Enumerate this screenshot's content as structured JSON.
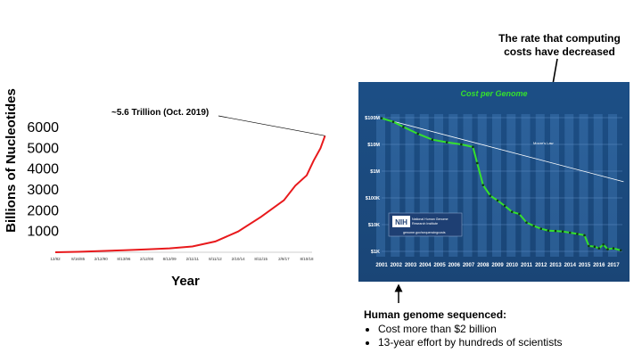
{
  "chart_data": [
    {
      "type": "line",
      "title": "",
      "ylabel": "Billions of Nucleotides",
      "xlabel": "Year",
      "ylim": [
        0,
        6000
      ],
      "yticks": [
        1000,
        2000,
        3000,
        4000,
        5000,
        6000
      ],
      "xtick_labels": [
        "12/82",
        "8/16/85",
        "2/12/90",
        "8/13/96",
        "2/12/08",
        "8/12/09",
        "2/11/11",
        "8/11/12",
        "2/10/14",
        "8/11/15",
        "2/9/17",
        "8/10/18"
      ],
      "annotation": "~5.6 Trillion (Oct. 2019)",
      "line_color": "#e8191c",
      "series": [
        {
          "x_index": [
            0,
            1,
            2,
            3,
            4,
            5,
            6,
            7,
            8,
            9,
            10,
            10.5,
            11,
            11.3,
            11.6,
            11.8
          ],
          "values": [
            0,
            20,
            60,
            100,
            140,
            190,
            280,
            520,
            1000,
            1700,
            2500,
            3200,
            3700,
            4400,
            5000,
            5600
          ]
        }
      ]
    },
    {
      "type": "line",
      "title": "Cost per Genome",
      "y_scale": "log",
      "ylim": [
        1000,
        100000000
      ],
      "ytick_labels": [
        "$100M",
        "$10M",
        "$1M",
        "$100K",
        "$10K",
        "$1K"
      ],
      "x_categories": [
        "2001",
        "2002",
        "2003",
        "2004",
        "2005",
        "2006",
        "2007",
        "2008",
        "2009",
        "2010",
        "2011",
        "2012",
        "2013",
        "2014",
        "2015",
        "2016",
        "2017"
      ],
      "series": [
        {
          "name": "Moore's Law",
          "color": "#ffffff",
          "x": [
            2001,
            2017.7
          ],
          "values": [
            95000000,
            400000
          ]
        },
        {
          "color": "#35e02d",
          "x": [
            2001,
            2001.8,
            2002.5,
            2003.5,
            2004.5,
            2005.5,
            2006.5,
            2007.3,
            2007.6,
            2008.0,
            2008.5,
            2009.0,
            2009.5,
            2010.0,
            2010.5,
            2011.0,
            2011.5,
            2012.0,
            2012.5,
            2013.0,
            2013.5,
            2014.0,
            2014.5,
            2015.0,
            2015.3,
            2015.7,
            2016.0,
            2016.3,
            2016.6,
            2017.0,
            2017.5
          ],
          "values": [
            95000000,
            70000000,
            45000000,
            25000000,
            15000000,
            12000000,
            10000000,
            8000000,
            2000000,
            300000,
            120000,
            80000,
            50000,
            30000,
            25000,
            12000,
            9000,
            7000,
            6000,
            5800,
            5500,
            5000,
            4500,
            4000,
            1600,
            1500,
            1300,
            1800,
            1200,
            1300,
            1100
          ]
        }
      ],
      "source_logo": {
        "logo_text": "NIH",
        "line1": "National Human Genome",
        "line2": "Research Institute",
        "url": "genome.gov/sequencingcosts"
      }
    }
  ],
  "callout": {
    "line1": "The rate that computing",
    "line2": "costs have decreased"
  },
  "bottom": {
    "heading": "Human genome sequenced:",
    "bullets": [
      "Cost  more than $2 billion",
      "13-year effort by hundreds of scientists"
    ]
  }
}
